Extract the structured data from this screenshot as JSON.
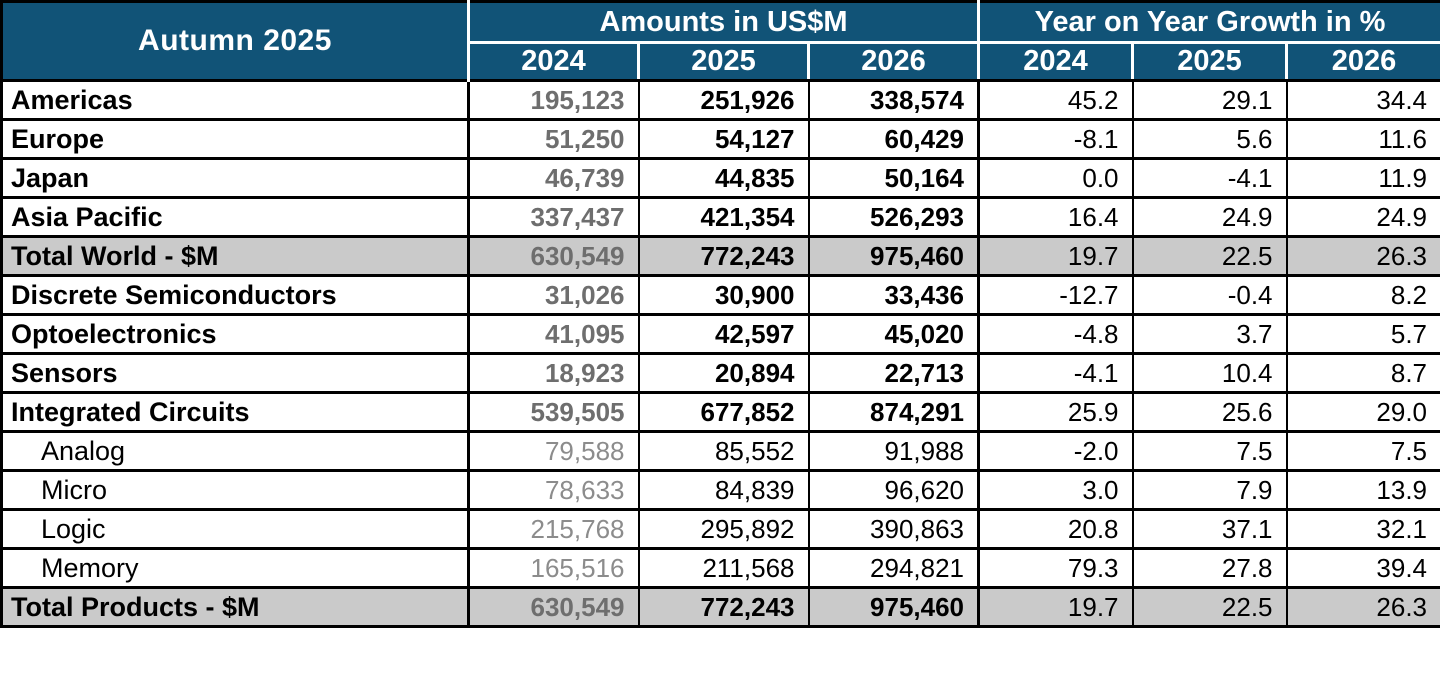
{
  "table": {
    "header": {
      "corner_label": "Autumn 2025",
      "amounts_group_label": "Amounts in US$M",
      "growth_group_label": "Year on Year Growth in %",
      "amount_years": [
        "2024",
        "2025",
        "2026"
      ],
      "growth_years": [
        "2024",
        "2025",
        "2026"
      ]
    },
    "rows": [
      {
        "label": "Americas",
        "type": "main",
        "amounts": [
          "195,123",
          "251,926",
          "338,574"
        ],
        "growth": [
          "45.2",
          "29.1",
          "34.4"
        ]
      },
      {
        "label": "Europe",
        "type": "main",
        "amounts": [
          "51,250",
          "54,127",
          "60,429"
        ],
        "growth": [
          "-8.1",
          "5.6",
          "11.6"
        ]
      },
      {
        "label": "Japan",
        "type": "main",
        "amounts": [
          "46,739",
          "44,835",
          "50,164"
        ],
        "growth": [
          "0.0",
          "-4.1",
          "11.9"
        ]
      },
      {
        "label": "Asia Pacific",
        "type": "main",
        "amounts": [
          "337,437",
          "421,354",
          "526,293"
        ],
        "growth": [
          "16.4",
          "24.9",
          "24.9"
        ]
      },
      {
        "label": "Total World - $M",
        "type": "total",
        "amounts": [
          "630,549",
          "772,243",
          "975,460"
        ],
        "growth": [
          "19.7",
          "22.5",
          "26.3"
        ]
      },
      {
        "label": "Discrete Semiconductors",
        "type": "main",
        "amounts": [
          "31,026",
          "30,900",
          "33,436"
        ],
        "growth": [
          "-12.7",
          "-0.4",
          "8.2"
        ]
      },
      {
        "label": "Optoelectronics",
        "type": "main",
        "amounts": [
          "41,095",
          "42,597",
          "45,020"
        ],
        "growth": [
          "-4.8",
          "3.7",
          "5.7"
        ]
      },
      {
        "label": "Sensors",
        "type": "main",
        "amounts": [
          "18,923",
          "20,894",
          "22,713"
        ],
        "growth": [
          "-4.1",
          "10.4",
          "8.7"
        ]
      },
      {
        "label": "Integrated Circuits",
        "type": "main",
        "amounts": [
          "539,505",
          "677,852",
          "874,291"
        ],
        "growth": [
          "25.9",
          "25.6",
          "29.0"
        ]
      },
      {
        "label": "Analog",
        "type": "sub",
        "amounts": [
          "79,588",
          "85,552",
          "91,988"
        ],
        "growth": [
          "-2.0",
          "7.5",
          "7.5"
        ]
      },
      {
        "label": "Micro",
        "type": "sub",
        "amounts": [
          "78,633",
          "84,839",
          "96,620"
        ],
        "growth": [
          "3.0",
          "7.9",
          "13.9"
        ]
      },
      {
        "label": "Logic",
        "type": "sub",
        "amounts": [
          "215,768",
          "295,892",
          "390,863"
        ],
        "growth": [
          "20.8",
          "37.1",
          "32.1"
        ]
      },
      {
        "label": "Memory",
        "type": "sub",
        "amounts": [
          "165,516",
          "211,568",
          "294,821"
        ],
        "growth": [
          "79.3",
          "27.8",
          "39.4"
        ]
      },
      {
        "label": "Total Products - $M",
        "type": "total",
        "amounts": [
          "630,549",
          "772,243",
          "975,460"
        ],
        "growth": [
          "19.7",
          "22.5",
          "26.3"
        ]
      }
    ]
  },
  "colors": {
    "header_bg": "#115377",
    "header_text": "#FFFFFF",
    "total_row_bg": "#CACACA",
    "muted_2024_text": "#6E6E6E",
    "sub_muted_2024_text": "#8C8C8C",
    "border": "#000000"
  },
  "chart_data": {
    "type": "table",
    "title": "Autumn 2025",
    "column_groups": [
      "Amounts in US$M",
      "Year on Year Growth in %"
    ],
    "columns": [
      "Amounts 2024",
      "Amounts 2025",
      "Amounts 2026",
      "Growth 2024",
      "Growth 2025",
      "Growth 2026"
    ],
    "rows": [
      {
        "label": "Americas",
        "amounts_usdm": [
          195123,
          251926,
          338574
        ],
        "yoy_growth_pct": [
          45.2,
          29.1,
          34.4
        ]
      },
      {
        "label": "Europe",
        "amounts_usdm": [
          51250,
          54127,
          60429
        ],
        "yoy_growth_pct": [
          -8.1,
          5.6,
          11.6
        ]
      },
      {
        "label": "Japan",
        "amounts_usdm": [
          46739,
          44835,
          50164
        ],
        "yoy_growth_pct": [
          0.0,
          -4.1,
          11.9
        ]
      },
      {
        "label": "Asia Pacific",
        "amounts_usdm": [
          337437,
          421354,
          526293
        ],
        "yoy_growth_pct": [
          16.4,
          24.9,
          24.9
        ]
      },
      {
        "label": "Total World - $M",
        "amounts_usdm": [
          630549,
          772243,
          975460
        ],
        "yoy_growth_pct": [
          19.7,
          22.5,
          26.3
        ]
      },
      {
        "label": "Discrete Semiconductors",
        "amounts_usdm": [
          31026,
          30900,
          33436
        ],
        "yoy_growth_pct": [
          -12.7,
          -0.4,
          8.2
        ]
      },
      {
        "label": "Optoelectronics",
        "amounts_usdm": [
          41095,
          42597,
          45020
        ],
        "yoy_growth_pct": [
          -4.8,
          3.7,
          5.7
        ]
      },
      {
        "label": "Sensors",
        "amounts_usdm": [
          18923,
          20894,
          22713
        ],
        "yoy_growth_pct": [
          -4.1,
          10.4,
          8.7
        ]
      },
      {
        "label": "Integrated Circuits",
        "amounts_usdm": [
          539505,
          677852,
          874291
        ],
        "yoy_growth_pct": [
          25.9,
          25.6,
          29.0
        ]
      },
      {
        "label": "Analog",
        "amounts_usdm": [
          79588,
          85552,
          91988
        ],
        "yoy_growth_pct": [
          -2.0,
          7.5,
          7.5
        ]
      },
      {
        "label": "Micro",
        "amounts_usdm": [
          78633,
          84839,
          96620
        ],
        "yoy_growth_pct": [
          3.0,
          7.9,
          13.9
        ]
      },
      {
        "label": "Logic",
        "amounts_usdm": [
          215768,
          295892,
          390863
        ],
        "yoy_growth_pct": [
          20.8,
          37.1,
          32.1
        ]
      },
      {
        "label": "Memory",
        "amounts_usdm": [
          165516,
          211568,
          294821
        ],
        "yoy_growth_pct": [
          79.3,
          27.8,
          39.4
        ]
      },
      {
        "label": "Total Products - $M",
        "amounts_usdm": [
          630549,
          772243,
          975460
        ],
        "yoy_growth_pct": [
          19.7,
          22.5,
          26.3
        ]
      }
    ]
  }
}
